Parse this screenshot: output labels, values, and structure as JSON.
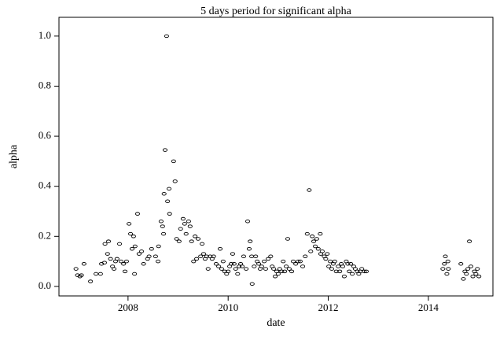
{
  "chart_data": {
    "type": "scatter",
    "title": "5 days period for significant alpha",
    "x_label": "date",
    "y_label": "alpha",
    "x": [
      2006.96,
      2006.99,
      2007.04,
      2007.07,
      2007.12,
      2007.25,
      2007.36,
      2007.45,
      2007.47,
      2007.53,
      2007.54,
      2007.61,
      2007.59,
      2007.65,
      2007.69,
      2007.72,
      2007.75,
      2007.78,
      2007.83,
      2007.86,
      2007.91,
      2007.94,
      2007.97,
      2008.02,
      2008.05,
      2008.08,
      2008.11,
      2008.13,
      2008.14,
      2008.19,
      2008.22,
      2008.27,
      2008.31,
      2008.39,
      2008.42,
      2008.47,
      2008.55,
      2008.6,
      2008.61,
      2008.66,
      2008.69,
      2008.71,
      2008.72,
      2008.74,
      2008.77,
      2008.79,
      2008.82,
      2008.83,
      2008.91,
      2008.94,
      2008.97,
      2009.02,
      2009.05,
      2009.1,
      2009.13,
      2009.16,
      2009.21,
      2009.24,
      2009.27,
      2009.31,
      2009.34,
      2009.37,
      2009.4,
      2009.45,
      2009.48,
      2009.51,
      2009.54,
      2009.57,
      2009.6,
      2009.64,
      2009.68,
      2009.71,
      2009.76,
      2009.81,
      2009.84,
      2009.87,
      2009.9,
      2009.93,
      2009.97,
      2010.0,
      2010.03,
      2010.06,
      2010.09,
      2010.12,
      2010.15,
      2010.19,
      2010.22,
      2010.25,
      2010.28,
      2010.31,
      2010.36,
      2010.39,
      2010.42,
      2010.44,
      2010.47,
      2010.48,
      2010.52,
      2010.55,
      2010.58,
      2010.61,
      2010.64,
      2010.67,
      2010.72,
      2010.75,
      2010.8,
      2010.85,
      2010.88,
      2010.91,
      2010.94,
      2010.97,
      2011.0,
      2011.03,
      2011.07,
      2011.1,
      2011.13,
      2011.16,
      2011.19,
      2011.22,
      2011.27,
      2011.3,
      2011.35,
      2011.4,
      2011.44,
      2011.49,
      2011.54,
      2011.58,
      2011.62,
      2011.65,
      2011.68,
      2011.71,
      2011.74,
      2011.77,
      2011.8,
      2011.84,
      2011.85,
      2011.88,
      2011.92,
      2011.95,
      2011.98,
      2012.01,
      2012.04,
      2012.07,
      2012.1,
      2012.13,
      2012.16,
      2012.2,
      2012.23,
      2012.26,
      2012.29,
      2012.32,
      2012.36,
      2012.39,
      2012.42,
      2012.45,
      2012.48,
      2012.51,
      2012.54,
      2012.58,
      2012.61,
      2012.64,
      2012.67,
      2012.72,
      2012.76,
      2014.29,
      2014.32,
      2014.34,
      2014.37,
      2014.39,
      2014.4,
      2014.65,
      2014.7,
      2014.73,
      2014.76,
      2014.79,
      2014.82,
      2014.85,
      2014.89,
      2014.92,
      2014.95,
      2014.98,
      2015.01
    ],
    "values": [
      0.07,
      0.045,
      0.04,
      0.045,
      0.09,
      0.02,
      0.05,
      0.05,
      0.09,
      0.095,
      0.17,
      0.18,
      0.13,
      0.11,
      0.08,
      0.07,
      0.1,
      0.11,
      0.17,
      0.1,
      0.09,
      0.06,
      0.1,
      0.25,
      0.21,
      0.15,
      0.2,
      0.05,
      0.16,
      0.29,
      0.13,
      0.14,
      0.09,
      0.11,
      0.12,
      0.15,
      0.12,
      0.1,
      0.16,
      0.26,
      0.24,
      0.21,
      0.37,
      0.545,
      1.0,
      0.34,
      0.39,
      0.29,
      0.5,
      0.42,
      0.19,
      0.18,
      0.23,
      0.27,
      0.25,
      0.21,
      0.26,
      0.24,
      0.18,
      0.1,
      0.2,
      0.11,
      0.19,
      0.12,
      0.17,
      0.13,
      0.11,
      0.12,
      0.07,
      0.12,
      0.11,
      0.12,
      0.09,
      0.08,
      0.15,
      0.07,
      0.1,
      0.06,
      0.05,
      0.06,
      0.08,
      0.09,
      0.13,
      0.09,
      0.07,
      0.05,
      0.08,
      0.09,
      0.08,
      0.12,
      0.07,
      0.26,
      0.15,
      0.18,
      0.12,
      0.01,
      0.08,
      0.12,
      0.1,
      0.09,
      0.07,
      0.08,
      0.1,
      0.07,
      0.11,
      0.12,
      0.08,
      0.07,
      0.04,
      0.06,
      0.05,
      0.07,
      0.06,
      0.1,
      0.06,
      0.08,
      0.19,
      0.07,
      0.06,
      0.1,
      0.09,
      0.1,
      0.1,
      0.08,
      0.12,
      0.21,
      0.385,
      0.14,
      0.2,
      0.18,
      0.16,
      0.19,
      0.15,
      0.21,
      0.13,
      0.14,
      0.12,
      0.11,
      0.13,
      0.08,
      0.1,
      0.07,
      0.09,
      0.1,
      0.06,
      0.08,
      0.06,
      0.09,
      0.08,
      0.04,
      0.1,
      0.09,
      0.06,
      0.09,
      0.05,
      0.08,
      0.07,
      0.06,
      0.05,
      0.06,
      0.07,
      0.06,
      0.06,
      0.07,
      0.09,
      0.12,
      0.05,
      0.1,
      0.07,
      0.09,
      0.03,
      0.06,
      0.05,
      0.07,
      0.18,
      0.08,
      0.04,
      0.06,
      0.05,
      0.07,
      0.04
    ],
    "color": "#000000",
    "xlim": [
      2006.62,
      2015.29
    ],
    "xticks": [
      2008,
      2010,
      2012,
      2014
    ],
    "ylim": [
      -0.038,
      1.075
    ],
    "yticks": [
      {
        "value": 0,
        "label": "0.0"
      },
      {
        "value": 0.2,
        "label": "0.2"
      },
      {
        "value": 0.4,
        "label": "0.4"
      },
      {
        "value": 0.6,
        "label": "0.6"
      },
      {
        "value": 0.8,
        "label": "0.8"
      },
      {
        "value": 1.0,
        "label": "1.0"
      }
    ],
    "grid": false
  }
}
